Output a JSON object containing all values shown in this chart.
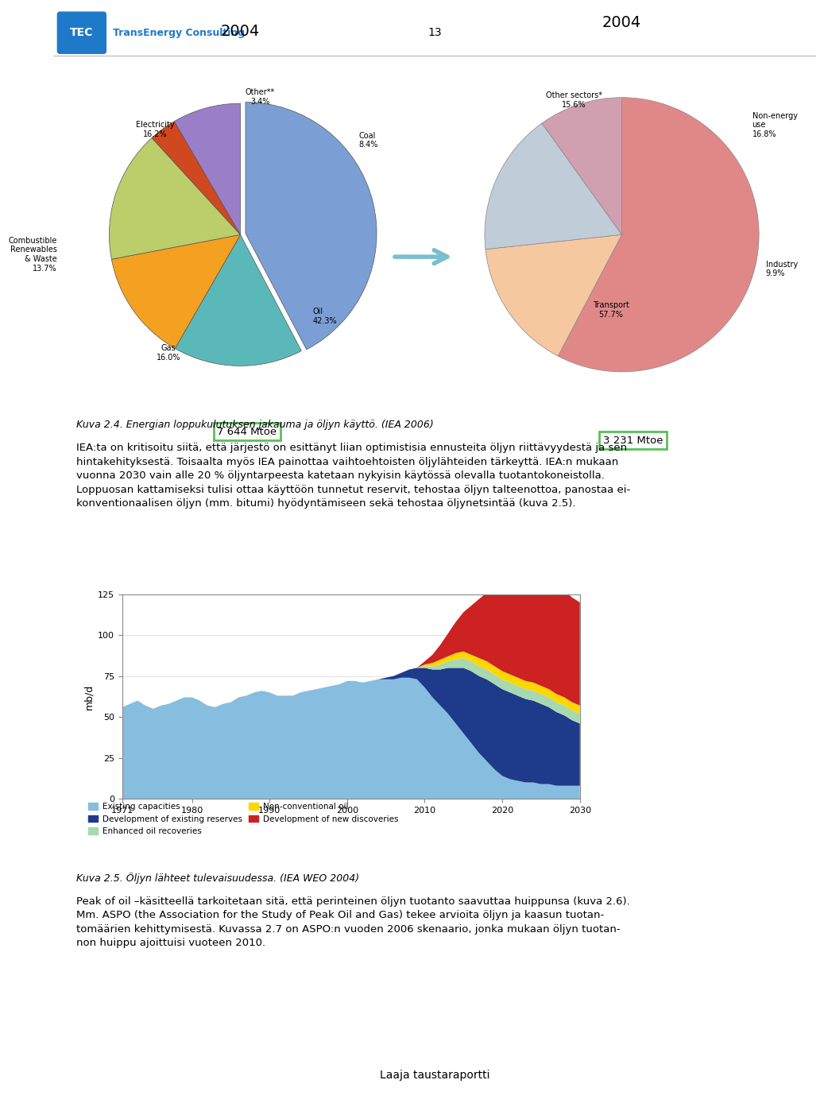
{
  "page_number": "13",
  "header_text": "TransEnergy Consulting",
  "pie1_title": "2004",
  "pie1_total": "7 644 Mtoe",
  "pie1_values": [
    42.3,
    16.0,
    13.7,
    16.2,
    3.4,
    8.4
  ],
  "pie1_colors": [
    "#7B9FD4",
    "#5BB8B8",
    "#F4A020",
    "#BCCE6A",
    "#D04820",
    "#9B7EC8"
  ],
  "pie2_title": "2004",
  "pie2_total": "3 231 Mtoe",
  "pie2_values": [
    57.7,
    15.6,
    16.8,
    9.9
  ],
  "pie2_colors": [
    "#E08888",
    "#F5C8A0",
    "#C0CCD8",
    "#D0A0B0"
  ],
  "caption1": "Kuva 2.4. Energian loppukulutuksen jakauma ja öljyn käyttö. (IEA 2006)",
  "body_text_lines": [
    "IEA:ta on kritisoitu siitä, että järjestö on esittänyt liian optimistisia ennusteita öljyn riittävyydestä ja sen",
    "hintakehityksestä. Toisaalta myös IEA painottaa vaihtoehtoisten öljylähteiden tärkeyttä. IEA:n mukaan",
    "vuonna 2030 vain alle 20 % öljyntarpeesta katetaan nykyisin käytössä olevalla tuotantokoneistolla.",
    "Loppuosan kattamiseksi tulisi ottaa käyttöön tunnetut reservit, tehostaa öljyn talteenottoa, panostaa ei-",
    "konventionaalisen öljyn (mm. bitumi) hyödyntämiseen sekä tehostaa öljynetsintää (kuva 2.5)."
  ],
  "chart_ylabel": "mb/d",
  "chart_yticks": [
    0,
    25,
    50,
    75,
    100,
    125
  ],
  "chart_xticks": [
    1971,
    1980,
    1990,
    2000,
    2010,
    2020,
    2030
  ],
  "existing_color": "#87BDDF",
  "dev_existing_color": "#1E3A8A",
  "enhanced_color": "#A8D8B0",
  "nonconv_color": "#FFD700",
  "new_disc_color": "#CC2222",
  "legend_labels": [
    "Existing capacities",
    "Enhanced oil recoveries",
    "Development of new discoveries",
    "Development of existing reserves",
    "Non-conventional oil"
  ],
  "caption2": "Kuva 2.5. Öljyn lähteet tulevaisuudessa. (IEA WEO 2004)",
  "body_text2_lines": [
    "Peak of oil –käsitteellä tarkoitetaan sitä, että perinteinen öljyn tuotanto saavuttaa huippunsa (kuva 2.6).",
    "Mm. ASPO (the Association for the Study of Peak Oil and Gas) tekee arvioita öljyn ja kaasun tuotan-",
    "tomäärien kehittymisestä. Kuvassa 2.7 on ASPO:n vuoden 2006 skenaario, jonka mukaan öljyn tuotan-",
    "non huippu ajoittuisi vuoteen 2010."
  ],
  "footer_text": "Laaja taustaraportti",
  "background_color": "#FFFFFF"
}
